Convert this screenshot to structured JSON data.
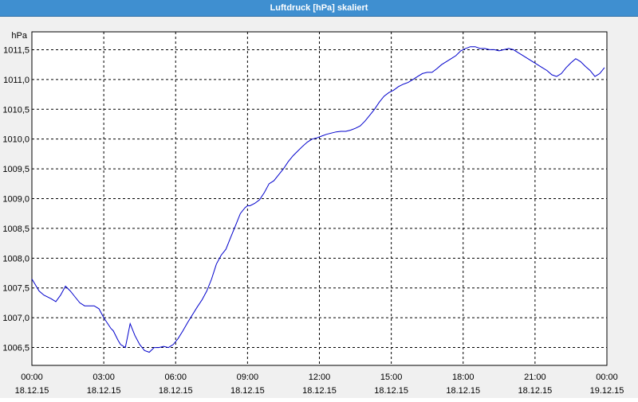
{
  "window": {
    "title": "Luftdruck [hPa] skaliert"
  },
  "chart_data": {
    "type": "line",
    "title": "Luftdruck [hPa] skaliert",
    "ylabel": "hPa",
    "xlabel": "",
    "xlim": [
      0,
      24
    ],
    "ylim": [
      1006.2,
      1011.8
    ],
    "grid": true,
    "grid_style": "dashed",
    "line_color": "#0000cc",
    "y_ticks": [
      1006.5,
      1007.0,
      1007.5,
      1008.0,
      1008.5,
      1009.0,
      1009.5,
      1010.0,
      1010.5,
      1011.0,
      1011.5
    ],
    "y_tick_labels": [
      "1006,5",
      "1007,0",
      "1007,5",
      "1008,0",
      "1008,5",
      "1009,0",
      "1009,5",
      "1010,0",
      "1010,5",
      "1011,0",
      "1011,5"
    ],
    "x_ticks": [
      0,
      3,
      6,
      9,
      12,
      15,
      18,
      21,
      24
    ],
    "x_tick_labels": [
      [
        "00:00",
        "18.12.15"
      ],
      [
        "03:00",
        "18.12.15"
      ],
      [
        "06:00",
        "18.12.15"
      ],
      [
        "09:00",
        "18.12.15"
      ],
      [
        "12:00",
        "18.12.15"
      ],
      [
        "15:00",
        "18.12.15"
      ],
      [
        "18:00",
        "18.12.15"
      ],
      [
        "21:00",
        "18.12.15"
      ],
      [
        "00:00",
        "19.12.15"
      ]
    ],
    "series": [
      {
        "x": [
          0.0,
          0.15,
          0.3,
          0.5,
          0.8,
          1.0,
          1.2,
          1.4,
          1.6,
          1.8,
          2.0,
          2.2,
          2.4,
          2.6,
          2.8,
          3.0,
          3.2,
          3.3,
          3.4,
          3.5,
          3.6,
          3.7,
          3.9,
          4.1,
          4.3,
          4.5,
          4.7,
          4.9,
          5.1,
          5.3,
          5.5,
          5.7,
          5.9,
          6.1,
          6.3,
          6.5,
          6.7,
          6.9,
          7.1,
          7.3,
          7.5,
          7.7,
          7.9,
          8.1,
          8.3,
          8.5,
          8.7,
          8.9,
          9.0,
          9.1,
          9.3,
          9.5,
          9.7,
          9.9,
          10.1,
          10.3,
          10.5,
          10.7,
          10.9,
          11.1,
          11.3,
          11.5,
          11.7,
          11.9,
          12.1,
          12.3,
          12.5,
          12.7,
          12.9,
          13.1,
          13.3,
          13.5,
          13.7,
          13.9,
          14.1,
          14.3,
          14.5,
          14.7,
          14.9,
          15.1,
          15.3,
          15.5,
          15.7,
          15.9,
          16.1,
          16.3,
          16.5,
          16.7,
          16.9,
          17.1,
          17.3,
          17.5,
          17.7,
          17.9,
          18.1,
          18.3,
          18.5,
          18.7,
          18.9,
          19.1,
          19.3,
          19.5,
          19.7,
          19.9,
          20.1,
          20.3,
          20.5,
          20.7,
          20.9,
          21.1,
          21.3,
          21.5,
          21.7,
          21.9,
          22.1,
          22.3,
          22.5,
          22.7,
          22.9,
          23.1,
          23.3,
          23.5,
          23.7,
          23.9
        ],
        "y": [
          1007.65,
          1007.55,
          1007.45,
          1007.38,
          1007.32,
          1007.27,
          1007.38,
          1007.53,
          1007.45,
          1007.35,
          1007.25,
          1007.2,
          1007.2,
          1007.2,
          1007.15,
          1007.0,
          1006.88,
          1006.82,
          1006.78,
          1006.7,
          1006.62,
          1006.55,
          1006.5,
          1006.9,
          1006.7,
          1006.55,
          1006.45,
          1006.42,
          1006.5,
          1006.5,
          1006.52,
          1006.5,
          1006.55,
          1006.65,
          1006.78,
          1006.92,
          1007.05,
          1007.18,
          1007.3,
          1007.45,
          1007.65,
          1007.9,
          1008.05,
          1008.15,
          1008.35,
          1008.55,
          1008.75,
          1008.85,
          1008.88,
          1008.88,
          1008.92,
          1008.98,
          1009.1,
          1009.25,
          1009.3,
          1009.4,
          1009.5,
          1009.62,
          1009.72,
          1009.8,
          1009.88,
          1009.95,
          1010.0,
          1010.02,
          1010.05,
          1010.08,
          1010.1,
          1010.12,
          1010.13,
          1010.13,
          1010.15,
          1010.18,
          1010.22,
          1010.3,
          1010.4,
          1010.5,
          1010.62,
          1010.72,
          1010.78,
          1010.82,
          1010.88,
          1010.92,
          1010.95,
          1011.0,
          1011.05,
          1011.1,
          1011.12,
          1011.12,
          1011.18,
          1011.25,
          1011.3,
          1011.35,
          1011.4,
          1011.48,
          1011.52,
          1011.55,
          1011.55,
          1011.52,
          1011.52,
          1011.5,
          1011.5,
          1011.48,
          1011.5,
          1011.52,
          1011.5,
          1011.45,
          1011.4,
          1011.35,
          1011.3,
          1011.25,
          1011.2,
          1011.15,
          1011.08,
          1011.05,
          1011.1,
          1011.2,
          1011.28,
          1011.35,
          1011.3,
          1011.22,
          1011.15,
          1011.05,
          1011.1,
          1011.2
        ]
      }
    ]
  }
}
